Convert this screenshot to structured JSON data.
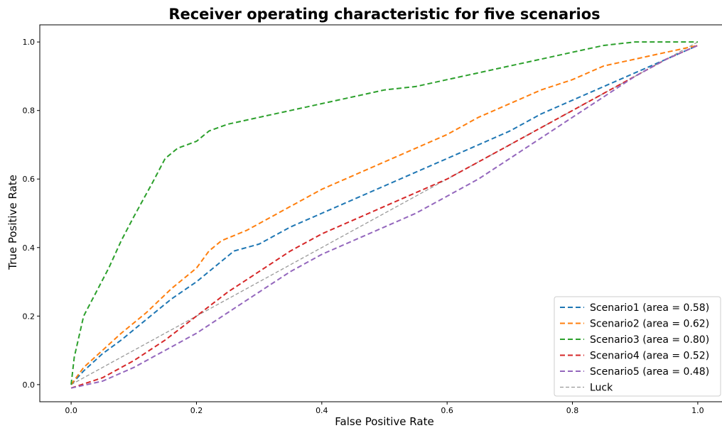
{
  "chart_data": {
    "type": "line",
    "title": "Receiver operating characteristic for five scenarios",
    "xlabel": "False Positive Rate",
    "ylabel": "True Positive Rate",
    "xlim": [
      -0.05,
      1.05
    ],
    "ylim": [
      -0.05,
      1.05
    ],
    "xticks": [
      "0.0",
      "0.2",
      "0.4",
      "0.6",
      "0.8",
      "1.0"
    ],
    "yticks": [
      "0.0",
      "0.2",
      "0.4",
      "0.6",
      "0.8",
      "1.0"
    ],
    "grid": false,
    "legend_position": "lower-right",
    "series": [
      {
        "name": "Scenario1 (area = 0.58)",
        "color": "#1f77b4",
        "x": [
          0,
          0.02,
          0.05,
          0.08,
          0.12,
          0.16,
          0.2,
          0.24,
          0.26,
          0.3,
          0.35,
          0.4,
          0.45,
          0.5,
          0.55,
          0.6,
          0.65,
          0.7,
          0.75,
          0.8,
          0.85,
          0.9,
          0.95,
          1.0
        ],
        "y": [
          0.0,
          0.04,
          0.09,
          0.13,
          0.19,
          0.25,
          0.3,
          0.36,
          0.39,
          0.41,
          0.46,
          0.5,
          0.54,
          0.58,
          0.62,
          0.66,
          0.7,
          0.74,
          0.79,
          0.83,
          0.87,
          0.91,
          0.95,
          0.99
        ]
      },
      {
        "name": "Scenario2 (area = 0.62)",
        "color": "#ff7f0e",
        "x": [
          0,
          0.02,
          0.05,
          0.08,
          0.12,
          0.16,
          0.2,
          0.22,
          0.24,
          0.28,
          0.3,
          0.35,
          0.4,
          0.45,
          0.5,
          0.55,
          0.6,
          0.65,
          0.7,
          0.75,
          0.8,
          0.85,
          0.9,
          0.95,
          1.0
        ],
        "y": [
          0.0,
          0.05,
          0.1,
          0.15,
          0.21,
          0.28,
          0.34,
          0.39,
          0.42,
          0.45,
          0.47,
          0.52,
          0.57,
          0.61,
          0.65,
          0.69,
          0.73,
          0.78,
          0.82,
          0.86,
          0.89,
          0.93,
          0.95,
          0.97,
          0.99
        ]
      },
      {
        "name": "Scenario3 (area = 0.80)",
        "color": "#2ca02c",
        "x": [
          0,
          0.005,
          0.01,
          0.02,
          0.04,
          0.06,
          0.08,
          0.1,
          0.13,
          0.15,
          0.17,
          0.2,
          0.22,
          0.25,
          0.3,
          0.35,
          0.4,
          0.45,
          0.5,
          0.55,
          0.6,
          0.65,
          0.7,
          0.75,
          0.8,
          0.85,
          0.9,
          0.95,
          1.0
        ],
        "y": [
          0.0,
          0.08,
          0.12,
          0.2,
          0.27,
          0.34,
          0.42,
          0.49,
          0.59,
          0.66,
          0.69,
          0.71,
          0.74,
          0.76,
          0.78,
          0.8,
          0.82,
          0.84,
          0.86,
          0.87,
          0.89,
          0.91,
          0.93,
          0.95,
          0.97,
          0.99,
          1.0,
          1.0,
          1.0
        ]
      },
      {
        "name": "Scenario4 (area = 0.52)",
        "color": "#d62728",
        "x": [
          0,
          0.05,
          0.1,
          0.15,
          0.2,
          0.25,
          0.3,
          0.35,
          0.4,
          0.45,
          0.5,
          0.55,
          0.6,
          0.65,
          0.7,
          0.75,
          0.8,
          0.85,
          0.9,
          0.95,
          1.0
        ],
        "y": [
          -0.01,
          0.02,
          0.07,
          0.13,
          0.2,
          0.27,
          0.33,
          0.39,
          0.44,
          0.48,
          0.52,
          0.56,
          0.6,
          0.65,
          0.7,
          0.75,
          0.8,
          0.85,
          0.9,
          0.95,
          0.99
        ]
      },
      {
        "name": "Scenario5 (area = 0.48)",
        "color": "#9467bd",
        "x": [
          0,
          0.05,
          0.1,
          0.15,
          0.2,
          0.25,
          0.3,
          0.35,
          0.4,
          0.45,
          0.5,
          0.55,
          0.6,
          0.65,
          0.7,
          0.75,
          0.8,
          0.85,
          0.9,
          0.95,
          1.0
        ],
        "y": [
          -0.01,
          0.01,
          0.05,
          0.1,
          0.15,
          0.21,
          0.27,
          0.33,
          0.38,
          0.42,
          0.46,
          0.5,
          0.55,
          0.6,
          0.66,
          0.72,
          0.78,
          0.84,
          0.9,
          0.95,
          0.99
        ]
      }
    ],
    "reference_line": {
      "name": "Luck",
      "color": "#999999",
      "x": [
        0,
        1
      ],
      "y": [
        0,
        1
      ]
    }
  }
}
